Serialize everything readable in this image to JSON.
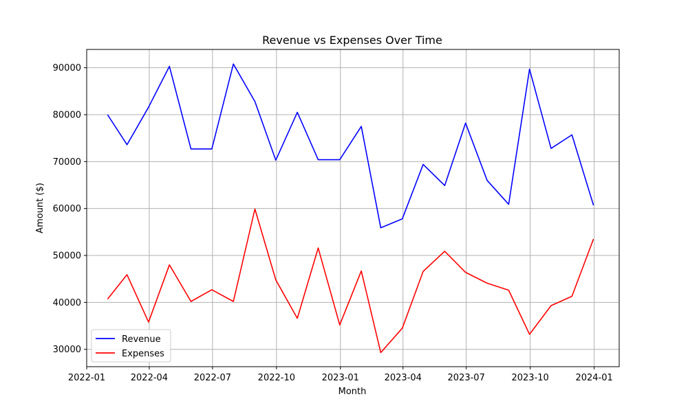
{
  "chart_data": {
    "type": "line",
    "title": "Revenue vs Expenses Over Time",
    "xlabel": "Month",
    "ylabel": "Amount ($)",
    "x": [
      "2022-01-31",
      "2022-02-28",
      "2022-03-31",
      "2022-04-30",
      "2022-05-31",
      "2022-06-30",
      "2022-07-31",
      "2022-08-31",
      "2022-09-30",
      "2022-10-31",
      "2022-11-30",
      "2022-12-31",
      "2023-01-31",
      "2023-02-28",
      "2023-03-31",
      "2023-04-30",
      "2023-05-31",
      "2023-06-30",
      "2023-07-31",
      "2023-08-31",
      "2023-09-30",
      "2023-10-31",
      "2023-11-30",
      "2023-12-31"
    ],
    "series": [
      {
        "name": "Revenue",
        "color": "#0000ff",
        "values": [
          80000,
          73600,
          81600,
          90300,
          72700,
          72700,
          90800,
          82800,
          70300,
          80500,
          70400,
          70400,
          77500,
          55900,
          57800,
          69400,
          64900,
          78200,
          66000,
          60900,
          89700,
          72800,
          75700,
          60700
        ]
      },
      {
        "name": "Expenses",
        "color": "#ff0000",
        "values": [
          40700,
          45900,
          35800,
          48000,
          40200,
          42700,
          40200,
          59900,
          44800,
          36600,
          51600,
          35200,
          46700,
          29300,
          34500,
          46600,
          50900,
          46400,
          44100,
          42600,
          33200,
          39300,
          41300,
          53500
        ]
      }
    ],
    "x_ticks": [
      "2022-01",
      "2022-04",
      "2022-07",
      "2022-10",
      "2023-01",
      "2023-04",
      "2023-07",
      "2023-10",
      "2024-01"
    ],
    "y_ticks": [
      30000,
      40000,
      50000,
      60000,
      70000,
      80000,
      90000
    ],
    "xlim": [
      "2022-01-01",
      "2024-02-06"
    ],
    "ylim": [
      26300,
      93900
    ],
    "grid": true,
    "legend_position": "lower-left"
  }
}
